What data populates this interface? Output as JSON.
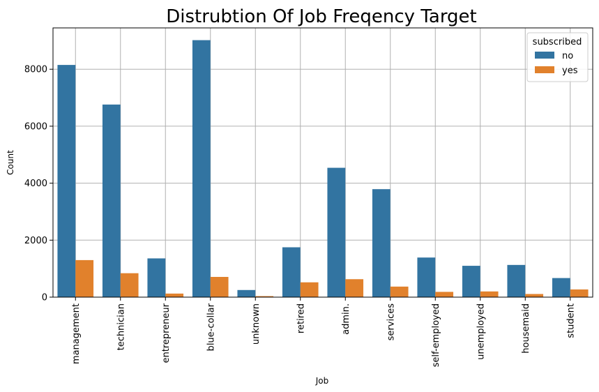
{
  "chart_data": {
    "type": "bar",
    "title": "Distrubtion Of Job Freqency Target",
    "xlabel": "Job",
    "ylabel": "Count",
    "ylim": [
      0,
      9450
    ],
    "yticks": [
      0,
      2000,
      4000,
      6000,
      8000
    ],
    "grid": true,
    "legend": {
      "title": "subscribed",
      "position": "top-right"
    },
    "categories": [
      "management",
      "technician",
      "entrepreneur",
      "blue-collar",
      "unknown",
      "retired",
      "admin.",
      "services",
      "self-employed",
      "unemployed",
      "housemaid",
      "student"
    ],
    "series": [
      {
        "name": "no",
        "color": "#3274a1",
        "values": [
          8150,
          6760,
          1360,
          9020,
          250,
          1750,
          4540,
          3790,
          1390,
          1100,
          1130,
          670
        ]
      },
      {
        "name": "yes",
        "color": "#e1812c",
        "values": [
          1300,
          840,
          125,
          710,
          35,
          520,
          630,
          370,
          185,
          200,
          110,
          270
        ]
      }
    ]
  }
}
